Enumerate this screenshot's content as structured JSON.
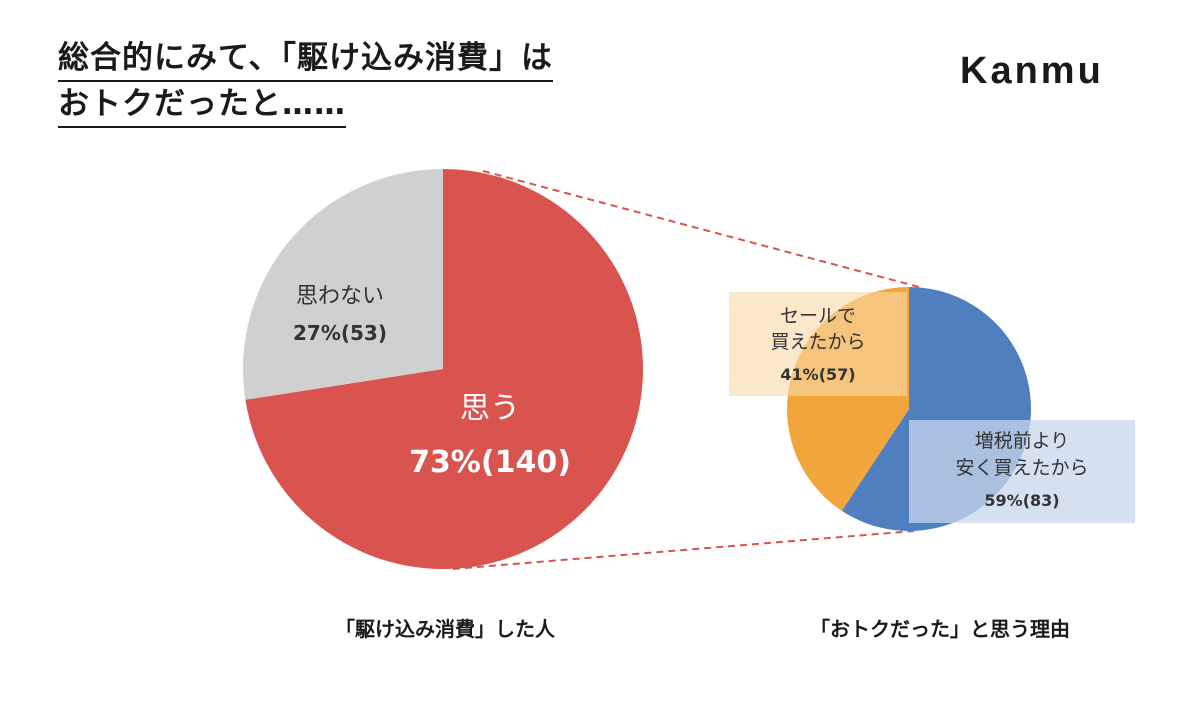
{
  "title": {
    "line1": "総合的にみて、「駆け込み消費」は",
    "line2": "おトクだったと……"
  },
  "logo": "Kanmu",
  "colors": {
    "red": "#d9534f",
    "gray": "#d0d0d0",
    "blue": "#4f7fbf",
    "orange": "#f2a53a",
    "orange_box": "#f9d8a8",
    "blue_box": "#c7d6ec",
    "connector": "#d9534f"
  },
  "chart_data": [
    {
      "type": "pie",
      "caption": "「駆け込み消費」した人",
      "slices": [
        {
          "label": "思う",
          "percent_label": "73%(140)",
          "value": 140,
          "percent": 73
        },
        {
          "label": "思わない",
          "percent_label": "27%(53)",
          "value": 53,
          "percent": 27
        }
      ]
    },
    {
      "type": "pie",
      "caption": "「おトクだった」と思う理由",
      "slices": [
        {
          "label_lines": [
            "増税前より",
            "安く買えたから"
          ],
          "percent_label": "59%(83)",
          "value": 83,
          "percent": 59
        },
        {
          "label_lines": [
            "セールで",
            "買えたから"
          ],
          "percent_label": "41%(57)",
          "value": 57,
          "percent": 41
        }
      ]
    }
  ]
}
